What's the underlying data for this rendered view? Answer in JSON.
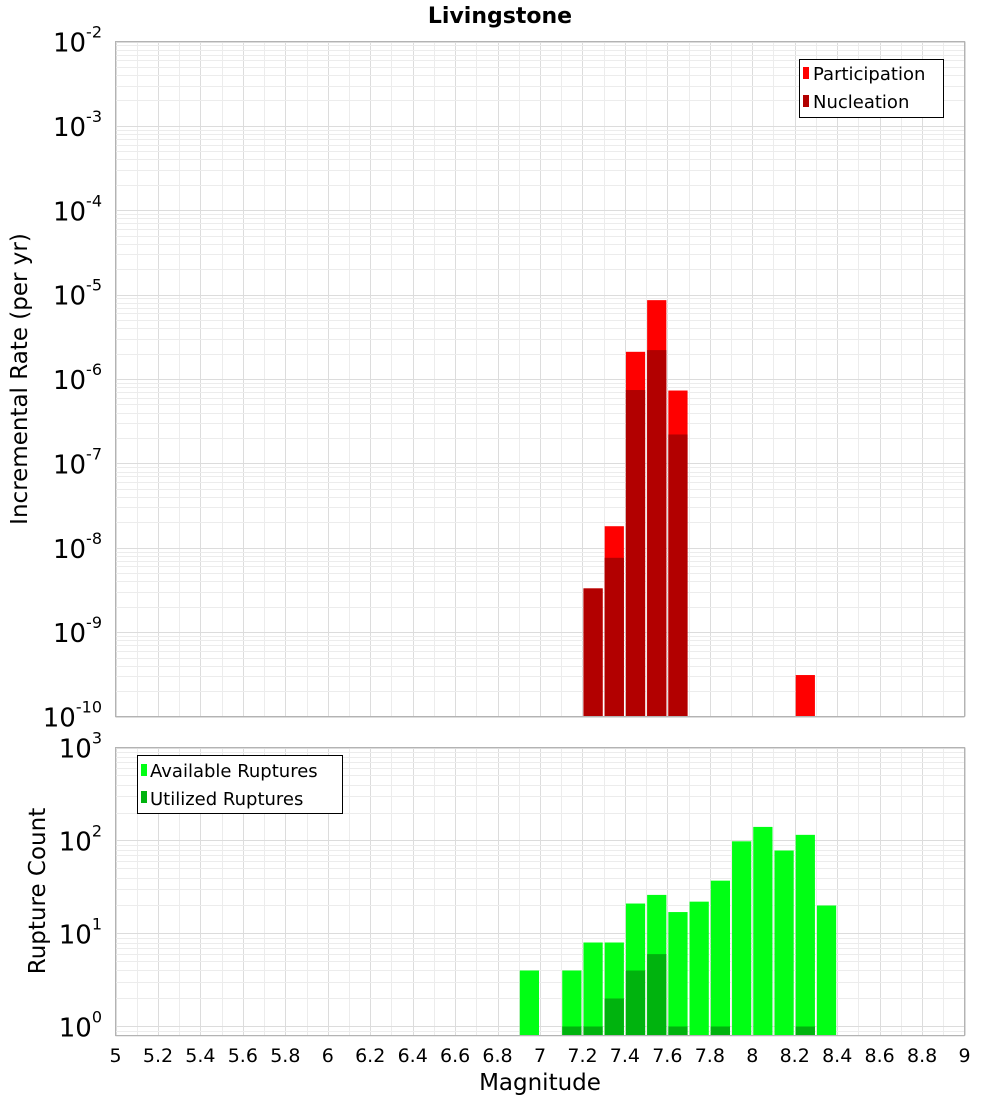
{
  "chart_data": [
    {
      "type": "bar",
      "title": "Livingstone",
      "xlabel": "",
      "ylabel": "Incremental Rate (per yr)",
      "yscale": "log",
      "ylim": [
        1e-10,
        0.01
      ],
      "xlim": [
        5,
        9
      ],
      "bin_width": 0.1,
      "legend_position": "top-right",
      "grid": true,
      "y_tick_labels": [
        {
          "base": "10",
          "exp": "-10",
          "value": 1e-10
        },
        {
          "base": "10",
          "exp": "-9",
          "value": 1e-09
        },
        {
          "base": "10",
          "exp": "-8",
          "value": 1e-08
        },
        {
          "base": "10",
          "exp": "-7",
          "value": 1e-07
        },
        {
          "base": "10",
          "exp": "-6",
          "value": 1e-06
        },
        {
          "base": "10",
          "exp": "-5",
          "value": 1e-05
        },
        {
          "base": "10",
          "exp": "-4",
          "value": 0.0001
        },
        {
          "base": "10",
          "exp": "-3",
          "value": 0.001
        },
        {
          "base": "10",
          "exp": "-2",
          "value": 0.01
        }
      ],
      "series": [
        {
          "name": "Participation",
          "color": "#ff0000",
          "x": [
            7.25,
            7.35,
            7.45,
            7.55,
            7.65,
            8.25
          ],
          "values": [
            3.3e-09,
            1.8e-08,
            2.1e-06,
            8.6e-06,
            7.3e-07,
            3.1e-10
          ]
        },
        {
          "name": "Nucleation",
          "color": "#b20000",
          "x": [
            7.25,
            7.35,
            7.45,
            7.55,
            7.65
          ],
          "values": [
            3.3e-09,
            7.6e-09,
            7.4e-07,
            2.2e-06,
            2.2e-07
          ]
        }
      ]
    },
    {
      "type": "bar",
      "title": "",
      "xlabel": "Magnitude",
      "ylabel": "Rupture Count",
      "yscale": "log",
      "ylim": [
        0.8,
        1000
      ],
      "xlim": [
        5,
        9
      ],
      "bin_width": 0.1,
      "legend_position": "top-left",
      "grid": true,
      "x_tick_labels": [
        "5",
        "5.2",
        "5.4",
        "5.6",
        "5.8",
        "6",
        "6.2",
        "6.4",
        "6.6",
        "6.8",
        "7",
        "7.2",
        "7.4",
        "7.6",
        "7.8",
        "8",
        "8.2",
        "8.4",
        "8.6",
        "8.8",
        "9"
      ],
      "y_tick_labels": [
        {
          "base": "10",
          "exp": "0",
          "value": 1
        },
        {
          "base": "10",
          "exp": "1",
          "value": 10
        },
        {
          "base": "10",
          "exp": "2",
          "value": 100
        },
        {
          "base": "10",
          "exp": "3",
          "value": 1000
        }
      ],
      "series": [
        {
          "name": "Available Ruptures",
          "color": "#00ff14",
          "x": [
            6.95,
            7.15,
            7.25,
            7.35,
            7.45,
            7.55,
            7.65,
            7.75,
            7.85,
            7.95,
            8.05,
            8.15,
            8.25,
            8.35
          ],
          "values": [
            4,
            4,
            8,
            8,
            21,
            26,
            17,
            22,
            37,
            98,
            140,
            78,
            115,
            20
          ]
        },
        {
          "name": "Utilized Ruptures",
          "color": "#00b30e",
          "x": [
            7.15,
            7.25,
            7.35,
            7.45,
            7.55,
            7.65,
            7.85,
            8.25
          ],
          "values": [
            1,
            1,
            2,
            4,
            6,
            1,
            1,
            1
          ]
        }
      ]
    }
  ]
}
